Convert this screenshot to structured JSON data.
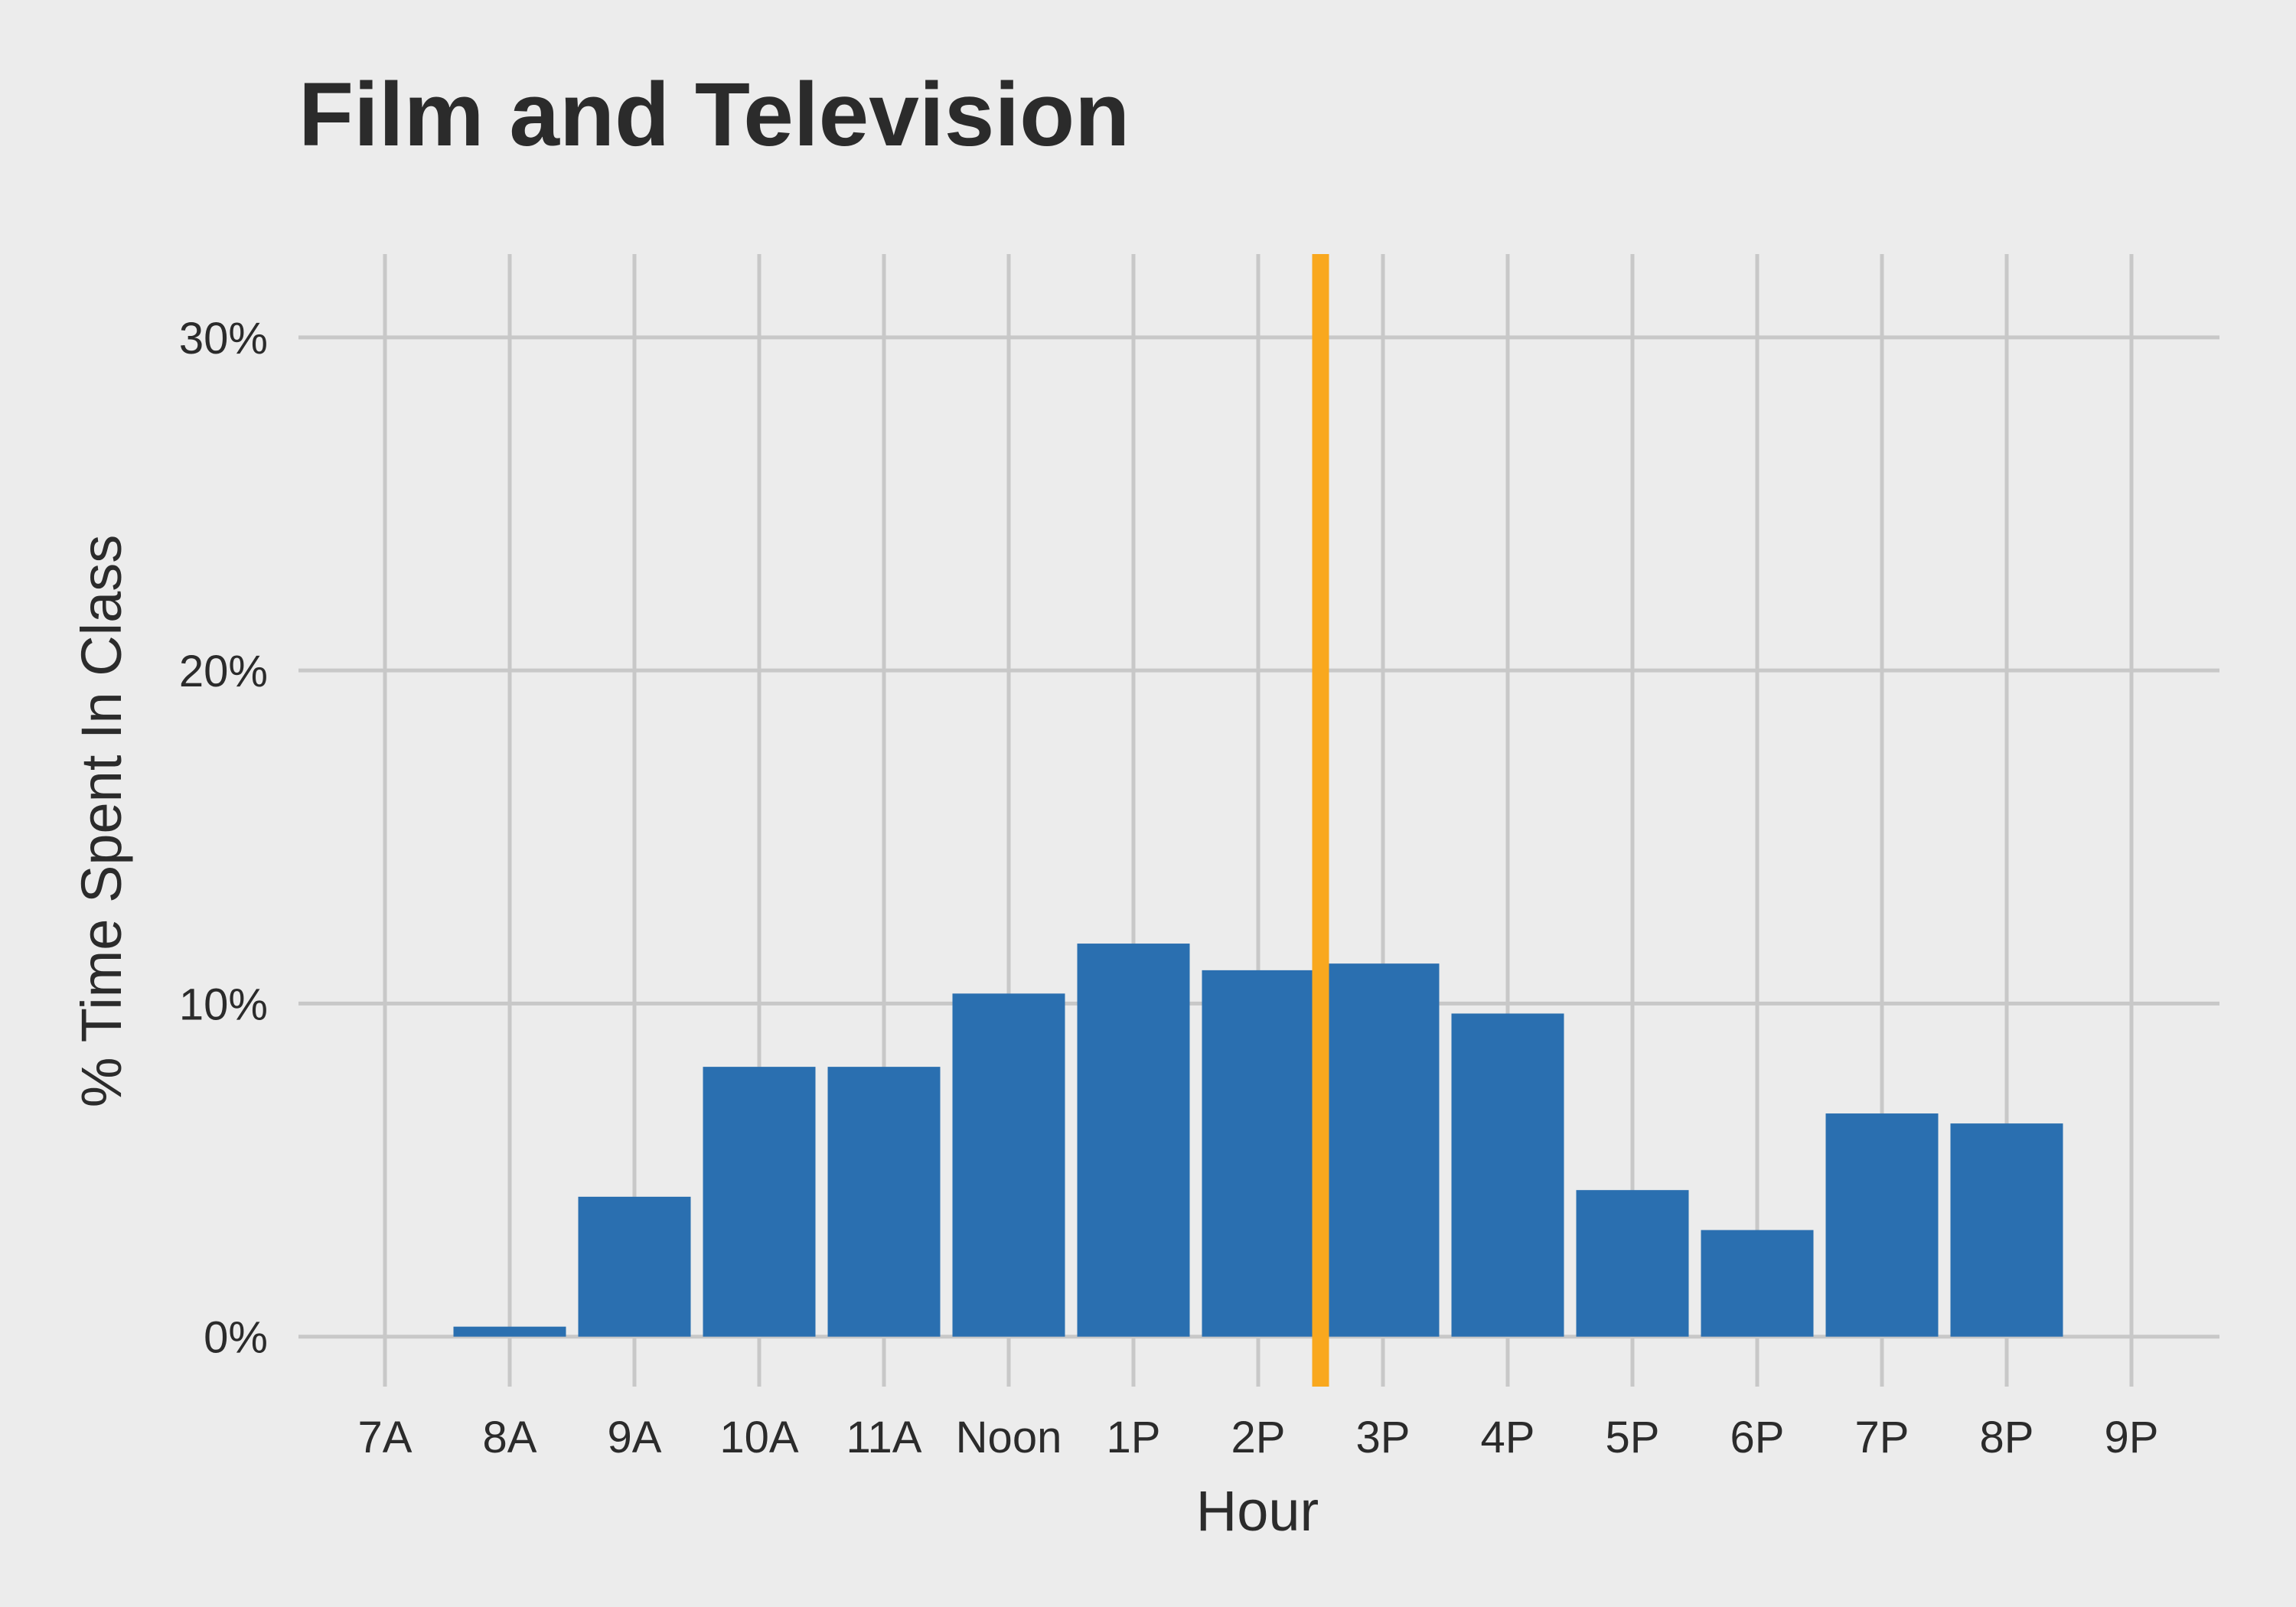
{
  "chart_data": {
    "type": "bar",
    "title": "Film and Television",
    "xlabel": "Hour",
    "ylabel": "% Time Spent In Class",
    "categories": [
      "7A",
      "8A",
      "9A",
      "10A",
      "11A",
      "Noon",
      "1P",
      "2P",
      "3P",
      "4P",
      "5P",
      "6P",
      "7P",
      "8P",
      "9P"
    ],
    "values": [
      0,
      0.3,
      4.2,
      8.1,
      8.1,
      10.3,
      11.8,
      11.0,
      11.2,
      9.7,
      4.4,
      3.2,
      6.7,
      6.4,
      0
    ],
    "value_unit": "%",
    "yticks": [
      0,
      10,
      20,
      30
    ],
    "ytick_labels": [
      "0%",
      "10%",
      "20%",
      "30%"
    ],
    "ylim": [
      -1.5,
      32.5
    ],
    "reference_line": {
      "x_position": "between 2P and 3P",
      "x_value": 7.5,
      "color": "#f9a81e"
    },
    "bar_color": "#2a6fb0",
    "background_color": "#ececec",
    "grid": true,
    "legend": "none"
  }
}
